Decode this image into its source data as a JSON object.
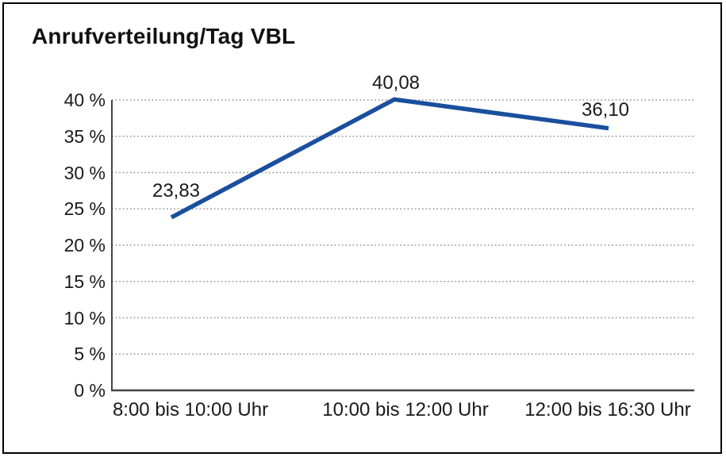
{
  "chart_data": {
    "type": "line",
    "title": "Anrufverteilung/Tag VBL",
    "categories": [
      "8:00 bis 10:00 Uhr",
      "10:00 bis 12:00 Uhr",
      "12:00 bis 16:30 Uhr"
    ],
    "values": [
      23.83,
      40.08,
      36.1
    ],
    "value_labels": [
      "23,83",
      "40,08",
      "36,10"
    ],
    "xlabel": "",
    "ylabel": "",
    "ylim": [
      0,
      40
    ],
    "y_ticks": [
      0,
      5,
      10,
      15,
      20,
      25,
      30,
      35,
      40
    ],
    "y_tick_labels": [
      "0 %",
      "5 %",
      "10 %",
      "15 %",
      "20 %",
      "25 %",
      "30 %",
      "35 %",
      "40 %"
    ],
    "grid": "horizontal-dotted",
    "legend": "none"
  },
  "colors": {
    "line": "#1a4f9d",
    "grid": "#8f8f8f",
    "axis": "#444444",
    "text": "#1a1a1a",
    "background": "#ffffff",
    "border": "#000000"
  }
}
